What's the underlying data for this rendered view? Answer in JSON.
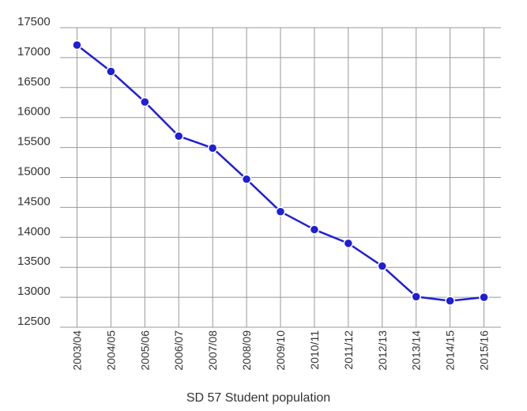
{
  "chart_data": {
    "type": "line",
    "title": "",
    "xlabel": "SD 57 Student population",
    "ylabel": "",
    "categories": [
      "2003/04",
      "2004/05",
      "2005/06",
      "2006/07",
      "2007/08",
      "2008/09",
      "2009/10",
      "2010/11",
      "2011/12",
      "2012/13",
      "2013/14",
      "2014/15",
      "2015/16"
    ],
    "yticks": [
      "12500",
      "13000",
      "13500",
      "14000",
      "14500",
      "15000",
      "15500",
      "16000",
      "16500",
      "17000",
      "17500"
    ],
    "ylim": [
      12500,
      17500
    ],
    "grid": true,
    "legend": "none",
    "series": [
      {
        "values": [
          17210,
          16770,
          16260,
          15690,
          15490,
          14970,
          14430,
          14130,
          13900,
          13520,
          13010,
          12940,
          13000
        ]
      }
    ],
    "colors": {
      "line": "#1f1fd6",
      "grid": "#999999",
      "text": "#333333"
    }
  }
}
